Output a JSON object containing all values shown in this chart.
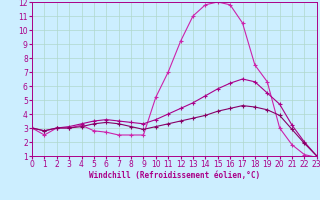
{
  "xlabel": "Windchill (Refroidissement éolien,°C)",
  "background_color": "#cceeff",
  "grid_color": "#b0d8cc",
  "line_color1": "#cc22aa",
  "line_color2": "#aa0088",
  "line_color3": "#880066",
  "xlim": [
    0,
    23
  ],
  "ylim": [
    1,
    12
  ],
  "xticks": [
    0,
    1,
    2,
    3,
    4,
    5,
    6,
    7,
    8,
    9,
    10,
    11,
    12,
    13,
    14,
    15,
    16,
    17,
    18,
    19,
    20,
    21,
    22,
    23
  ],
  "yticks": [
    1,
    2,
    3,
    4,
    5,
    6,
    7,
    8,
    9,
    10,
    11,
    12
  ],
  "curve1_x": [
    0,
    1,
    2,
    3,
    4,
    5,
    6,
    7,
    8,
    9,
    10,
    11,
    12,
    13,
    14,
    15,
    16,
    17,
    18,
    19,
    20,
    21,
    22,
    23
  ],
  "curve1_y": [
    3.0,
    2.5,
    3.0,
    3.0,
    3.2,
    2.8,
    2.7,
    2.5,
    2.5,
    2.5,
    5.2,
    7.0,
    9.2,
    11.0,
    11.8,
    12.0,
    11.8,
    10.5,
    7.5,
    6.3,
    3.0,
    1.8,
    1.1,
    0.9
  ],
  "curve2_x": [
    0,
    1,
    2,
    3,
    4,
    5,
    6,
    7,
    8,
    9,
    10,
    11,
    12,
    13,
    14,
    15,
    16,
    17,
    18,
    19,
    20,
    21,
    22,
    23
  ],
  "curve2_y": [
    3.0,
    2.8,
    3.0,
    3.1,
    3.3,
    3.5,
    3.6,
    3.5,
    3.4,
    3.3,
    3.6,
    4.0,
    4.4,
    4.8,
    5.3,
    5.8,
    6.2,
    6.5,
    6.3,
    5.5,
    4.7,
    3.2,
    2.0,
    1.0
  ],
  "curve3_x": [
    0,
    1,
    2,
    3,
    4,
    5,
    6,
    7,
    8,
    9,
    10,
    11,
    12,
    13,
    14,
    15,
    16,
    17,
    18,
    19,
    20,
    21,
    22,
    23
  ],
  "curve3_y": [
    3.0,
    2.8,
    3.0,
    3.0,
    3.1,
    3.3,
    3.4,
    3.3,
    3.1,
    2.9,
    3.1,
    3.3,
    3.5,
    3.7,
    3.9,
    4.2,
    4.4,
    4.6,
    4.5,
    4.3,
    3.9,
    2.9,
    1.9,
    1.0
  ],
  "marker": "+",
  "markersize": 3,
  "linewidth": 0.8,
  "tick_fontsize": 5.5,
  "xlabel_fontsize": 5.5
}
